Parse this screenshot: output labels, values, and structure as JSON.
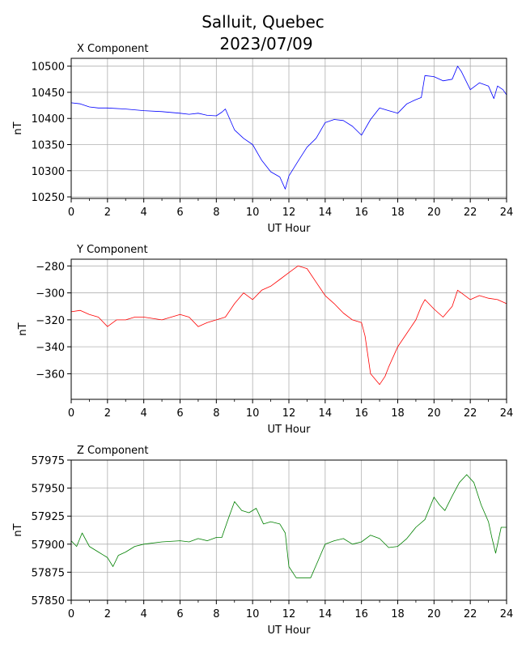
{
  "figure": {
    "title_line1": "Salluit, Quebec",
    "title_line2": "2023/07/09"
  },
  "chart_data": [
    {
      "type": "line",
      "title": "X Component",
      "xlabel": "UT Hour",
      "ylabel": "nT",
      "color": "#0000ff",
      "xlim": [
        0,
        24
      ],
      "ylim": [
        10247,
        10515
      ],
      "xticks": [
        0,
        2,
        4,
        6,
        8,
        10,
        12,
        14,
        16,
        18,
        20,
        22,
        24
      ],
      "yticks": [
        10250,
        10300,
        10350,
        10400,
        10450,
        10500
      ],
      "grid": true,
      "series": [
        {
          "x": [
            0,
            0.5,
            1,
            1.5,
            2,
            3,
            4,
            5,
            6,
            6.5,
            7,
            7.5,
            8,
            8.3,
            8.5,
            9,
            9.5,
            10,
            10.5,
            11,
            11.5,
            11.8,
            12,
            12.5,
            13,
            13.5,
            14,
            14.5,
            15,
            15.5,
            16,
            16.5,
            17,
            17.5,
            18,
            18.5,
            19,
            19.3,
            19.5,
            20,
            20.5,
            21,
            21.3,
            21.5,
            22,
            22.5,
            23,
            23.3,
            23.5,
            23.8,
            24
          ],
          "values": [
            10430,
            10428,
            10422,
            10420,
            10420,
            10418,
            10415,
            10413,
            10410,
            10408,
            10410,
            10406,
            10405,
            10412,
            10418,
            10378,
            10362,
            10350,
            10320,
            10298,
            10288,
            10265,
            10290,
            10318,
            10345,
            10362,
            10392,
            10398,
            10396,
            10385,
            10368,
            10398,
            10420,
            10415,
            10410,
            10428,
            10436,
            10440,
            10482,
            10480,
            10472,
            10475,
            10500,
            10490,
            10455,
            10468,
            10462,
            10438,
            10462,
            10455,
            10445
          ]
        }
      ]
    },
    {
      "type": "line",
      "title": "Y Component",
      "xlabel": "UT Hour",
      "ylabel": "nT",
      "color": "#ff0000",
      "xlim": [
        0,
        24
      ],
      "ylim": [
        -379,
        -275
      ],
      "xticks": [
        0,
        2,
        4,
        6,
        8,
        10,
        12,
        14,
        16,
        18,
        20,
        22,
        24
      ],
      "yticks": [
        -280,
        -300,
        -320,
        -340,
        -360
      ],
      "grid": true,
      "series": [
        {
          "x": [
            0,
            0.5,
            1,
            1.5,
            2,
            2.5,
            3,
            3.5,
            4,
            5,
            6,
            6.5,
            7,
            7.5,
            8,
            8.5,
            9,
            9.5,
            10,
            10.5,
            11,
            11.5,
            12,
            12.5,
            13,
            13.5,
            14,
            14.5,
            15,
            15.5,
            16,
            16.2,
            16.5,
            17,
            17.3,
            17.5,
            18,
            18.5,
            19,
            19.3,
            19.5,
            20,
            20.5,
            21,
            21.3,
            21.5,
            22,
            22.5,
            23,
            23.5,
            24
          ],
          "values": [
            -314,
            -313,
            -316,
            -318,
            -325,
            -320,
            -320,
            -318,
            -318,
            -320,
            -316,
            -318,
            -325,
            -322,
            -320,
            -318,
            -308,
            -300,
            -305,
            -298,
            -295,
            -290,
            -285,
            -280,
            -282,
            -292,
            -302,
            -308,
            -315,
            -320,
            -322,
            -332,
            -360,
            -368,
            -362,
            -355,
            -340,
            -330,
            -320,
            -310,
            -305,
            -312,
            -318,
            -310,
            -298,
            -300,
            -305,
            -302,
            -304,
            -305,
            -308
          ]
        }
      ]
    },
    {
      "type": "line",
      "title": "Z Component",
      "xlabel": "UT Hour",
      "ylabel": "nT",
      "color": "#008000",
      "xlim": [
        0,
        24
      ],
      "ylim": [
        57850,
        57975
      ],
      "xticks": [
        0,
        2,
        4,
        6,
        8,
        10,
        12,
        14,
        16,
        18,
        20,
        22,
        24
      ],
      "yticks": [
        57850,
        57875,
        57900,
        57925,
        57950,
        57975
      ],
      "grid": true,
      "series": [
        {
          "x": [
            0,
            0.3,
            0.6,
            1,
            1.5,
            2,
            2.3,
            2.6,
            3,
            3.5,
            4,
            5,
            6,
            6.5,
            7,
            7.5,
            8,
            8.3,
            8.6,
            9,
            9.4,
            9.8,
            10.2,
            10.6,
            11,
            11.5,
            11.8,
            12,
            12.4,
            12.8,
            13.2,
            13.6,
            14,
            14.5,
            15,
            15.5,
            16,
            16.5,
            17,
            17.5,
            18,
            18.5,
            19,
            19.5,
            20,
            20.3,
            20.6,
            21,
            21.4,
            21.8,
            22.2,
            22.6,
            23,
            23.2,
            23.4,
            23.7,
            24
          ],
          "values": [
            57903,
            57898,
            57910,
            57898,
            57893,
            57888,
            57880,
            57890,
            57893,
            57898,
            57900,
            57902,
            57903,
            57902,
            57905,
            57903,
            57906,
            57906,
            57920,
            57938,
            57930,
            57928,
            57932,
            57918,
            57920,
            57918,
            57910,
            57880,
            57870,
            57870,
            57870,
            57885,
            57900,
            57903,
            57905,
            57900,
            57902,
            57908,
            57905,
            57897,
            57898,
            57905,
            57915,
            57922,
            57942,
            57935,
            57930,
            57943,
            57955,
            57962,
            57955,
            57935,
            57920,
            57905,
            57892,
            57915,
            57915
          ]
        }
      ]
    }
  ]
}
